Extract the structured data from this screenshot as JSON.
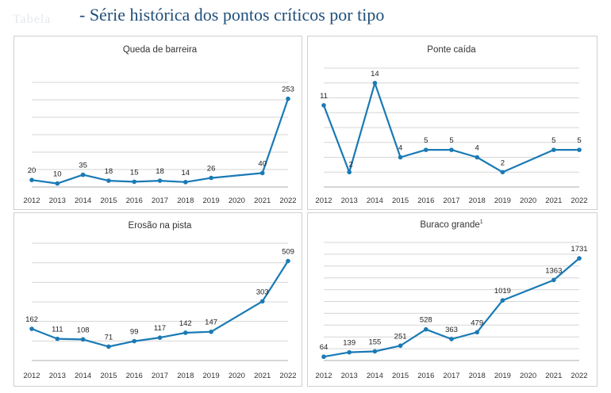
{
  "header": {
    "faded_label": "Tabela",
    "title": "- Série histórica dos pontos críticos por tipo"
  },
  "colors": {
    "series": "#1a7ab5",
    "title": "#1f4e79",
    "grid": "#d6d6d6"
  },
  "chart_data": [
    {
      "type": "line",
      "title": "Queda de barreira",
      "x": [
        "2012",
        "2013",
        "2014",
        "2015",
        "2016",
        "2017",
        "2018",
        "2019",
        "2020",
        "2021",
        "2022"
      ],
      "values": [
        20,
        10,
        35,
        18,
        15,
        18,
        14,
        26,
        null,
        40,
        253
      ],
      "ylim": [
        0,
        300
      ],
      "gridlines": 6,
      "grid": true,
      "xlabel": "",
      "ylabel": ""
    },
    {
      "type": "line",
      "title": "Ponte caída",
      "x": [
        "2012",
        "2013",
        "2014",
        "2015",
        "2016",
        "2017",
        "2018",
        "2019",
        "2020",
        "2021",
        "2022"
      ],
      "values": [
        11,
        2,
        14,
        4,
        5,
        5,
        4,
        2,
        null,
        5,
        5
      ],
      "ylim": [
        0,
        16
      ],
      "gridlines": 8,
      "grid": true,
      "xlabel": "",
      "ylabel": ""
    },
    {
      "type": "line",
      "title": "Erosão na pista",
      "x": [
        "2012",
        "2013",
        "2014",
        "2015",
        "2016",
        "2017",
        "2018",
        "2019",
        "2020",
        "2021",
        "2022"
      ],
      "values": [
        162,
        111,
        108,
        71,
        99,
        117,
        142,
        147,
        null,
        303,
        509
      ],
      "ylim": [
        0,
        600
      ],
      "gridlines": 6,
      "grid": true,
      "xlabel": "",
      "ylabel": ""
    },
    {
      "type": "line",
      "title": "Buraco grande",
      "title_sup": "1",
      "x": [
        "2012",
        "2013",
        "2014",
        "2015",
        "2016",
        "2017",
        "2018",
        "2019",
        "2020",
        "2021",
        "2022"
      ],
      "values": [
        64,
        139,
        155,
        251,
        528,
        363,
        479,
        1019,
        null,
        1363,
        1731
      ],
      "ylim": [
        0,
        2000
      ],
      "gridlines": 10,
      "grid": true,
      "xlabel": "",
      "ylabel": ""
    }
  ]
}
